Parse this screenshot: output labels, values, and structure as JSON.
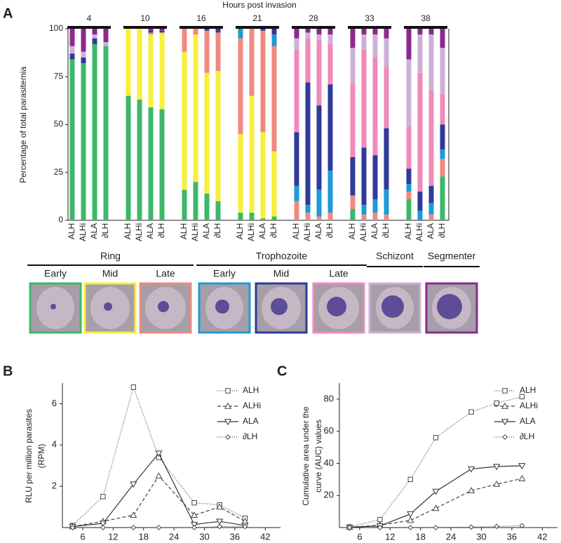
{
  "chart_data": [
    {
      "type": "stacked_bar",
      "panel_label": "A",
      "title": "Hours post invasion",
      "y_label": "Percentage of total parasitemia",
      "groups": [
        "4",
        "10",
        "16",
        "21",
        "28",
        "33",
        "38"
      ],
      "categories": [
        "ALH",
        "ALHi",
        "ALA",
        "∂LH",
        "ALH",
        "ALHi",
        "ALA",
        "∂LH",
        "ALH",
        "ALHi",
        "ALA",
        "∂LH",
        "ALH",
        "ALHi",
        "ALA",
        "∂LH",
        "ALH",
        "ALHi",
        "ALA",
        "∂LH",
        "ALH",
        "ALHi",
        "ALA",
        "∂LH",
        "ALH",
        "ALHi",
        "ALA",
        "∂LH"
      ],
      "ylim": [
        0,
        100
      ],
      "yticks": [
        0,
        25,
        50,
        75,
        100
      ],
      "series": [
        {
          "color": "#3db86a",
          "values": [
            84,
            82,
            92,
            91,
            65,
            63,
            59,
            58,
            16,
            20,
            14,
            10,
            4,
            4,
            1,
            2,
            0,
            0,
            0,
            0,
            6,
            0,
            0,
            0,
            11,
            0,
            0,
            23
          ]
        },
        {
          "color": "#f7ef3a",
          "values": [
            0,
            0,
            0,
            0,
            35,
            37,
            38,
            40,
            72,
            77,
            63,
            68,
            41,
            61,
            45,
            34,
            0,
            0,
            0,
            0,
            0,
            0,
            0,
            0,
            0,
            0,
            0,
            0
          ]
        },
        {
          "color": "#f08a80",
          "values": [
            0,
            0,
            0,
            0,
            0,
            0,
            1,
            0,
            12,
            3,
            22,
            20,
            50,
            35,
            53,
            55,
            10,
            4,
            2,
            4,
            7,
            3,
            4,
            3,
            4,
            0,
            3,
            9
          ]
        },
        {
          "color": "#1e9ad8",
          "values": [
            0,
            0,
            0,
            0,
            0,
            0,
            0,
            0,
            0,
            0,
            0,
            0,
            5,
            0,
            0,
            6,
            8,
            4,
            14,
            22,
            0,
            5,
            7,
            13,
            4,
            5,
            6,
            5
          ]
        },
        {
          "color": "#2f3a9a",
          "values": [
            3,
            3,
            3,
            0,
            0,
            0,
            1,
            1,
            0,
            0,
            1,
            2,
            0,
            0,
            1,
            3,
            28,
            64,
            44,
            45,
            20,
            30,
            23,
            32,
            8,
            10,
            9,
            13
          ]
        },
        {
          "color": "#f08ab8",
          "values": [
            0,
            0,
            0,
            0,
            0,
            0,
            0,
            0,
            0,
            0,
            0,
            0,
            0,
            0,
            0,
            0,
            43,
            23,
            34,
            21,
            38,
            51,
            51,
            32,
            22,
            62,
            50,
            16
          ]
        },
        {
          "color": "#cdb0d8",
          "values": [
            4,
            3,
            2,
            2,
            0,
            0,
            0,
            0,
            0,
            0,
            0,
            0,
            0,
            0,
            0,
            0,
            6,
            3,
            3,
            5,
            19,
            8,
            12,
            15,
            35,
            20,
            29,
            24
          ]
        },
        {
          "color": "#8a2a8e",
          "values": [
            9,
            12,
            3,
            7,
            0,
            0,
            1,
            1,
            0,
            0,
            0,
            0,
            0,
            0,
            0,
            0,
            5,
            2,
            3,
            3,
            10,
            3,
            3,
            5,
            16,
            3,
            3,
            10
          ]
        }
      ],
      "stage_panel": {
        "groups": [
          {
            "label": "Ring",
            "items": [
              "Early",
              "Mid",
              "Late"
            ]
          },
          {
            "label": "Trophozoite",
            "items": [
              "Early",
              "Mid",
              "Late"
            ]
          },
          {
            "label": "Schizont",
            "items": []
          },
          {
            "label": "Segmenter",
            "items": []
          }
        ]
      }
    },
    {
      "type": "line",
      "panel_label": "B",
      "y_label": [
        "RLU per million parasites",
        "(RPM)"
      ],
      "x": [
        4,
        10,
        16,
        21,
        28,
        33,
        38
      ],
      "xlim": [
        2,
        45
      ],
      "xticks": [
        6,
        12,
        18,
        24,
        30,
        36,
        42
      ],
      "ylim": [
        0,
        7
      ],
      "yticks": [
        2,
        4,
        6
      ],
      "series": [
        {
          "name": "ALH",
          "color": "#444",
          "dash": "1,2",
          "marker": "square",
          "values": [
            0.1,
            1.5,
            6.8,
            3.4,
            1.2,
            1.1,
            0.45
          ]
        },
        {
          "name": "ALHi",
          "color": "#444",
          "dash": "5,3",
          "marker": "triangle",
          "values": [
            0.05,
            0.3,
            0.6,
            2.5,
            0.6,
            1.0,
            0.3
          ]
        },
        {
          "name": "ALA",
          "color": "#333",
          "dash": "none",
          "marker": "triangle-down",
          "values": [
            0.05,
            0.2,
            2.1,
            3.6,
            0.15,
            0.3,
            0.1
          ]
        },
        {
          "name": "∂LH",
          "color": "#444",
          "dash": "1,2",
          "marker": "diamond",
          "values": [
            0,
            0,
            0,
            0,
            0,
            0.05,
            0.05
          ]
        }
      ]
    },
    {
      "type": "line",
      "panel_label": "C",
      "y_label": [
        "Cumulative area under the",
        "curve (AUC) values"
      ],
      "x": [
        4,
        10,
        16,
        21,
        28,
        33,
        38
      ],
      "xlim": [
        2,
        45
      ],
      "xticks": [
        6,
        12,
        18,
        24,
        30,
        36,
        42
      ],
      "ylim": [
        0,
        90
      ],
      "yticks": [
        20,
        40,
        60,
        80
      ],
      "series": [
        {
          "name": "ALH",
          "color": "#444",
          "dash": "1,2",
          "marker": "square",
          "values": [
            0.3,
            5,
            30,
            56,
            72,
            77.5,
            81.5
          ]
        },
        {
          "name": "ALHi",
          "color": "#444",
          "dash": "5,3",
          "marker": "triangle",
          "values": [
            0.2,
            1.5,
            4.5,
            12,
            23,
            27,
            30.5
          ]
        },
        {
          "name": "ALA",
          "color": "#333",
          "dash": "none",
          "marker": "triangle-down",
          "values": [
            0.2,
            1,
            8.5,
            22.5,
            36.5,
            38,
            38.5
          ]
        },
        {
          "name": "∂LH",
          "color": "#444",
          "dash": "1,2",
          "marker": "diamond",
          "values": [
            0,
            0,
            0,
            0,
            0.3,
            0.7,
            1.2
          ]
        }
      ]
    }
  ]
}
